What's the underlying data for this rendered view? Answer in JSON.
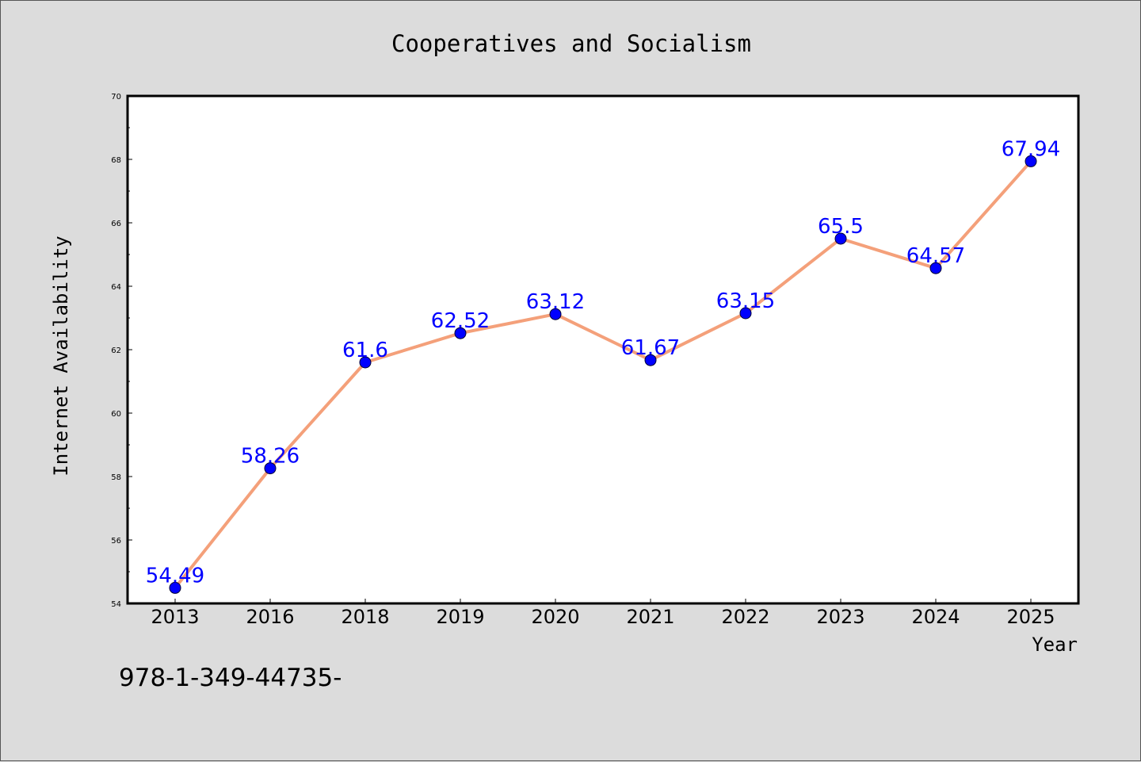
{
  "colors": {
    "background": "#dcdcdc",
    "plot_background": "#ffffff",
    "line": "#f4a07a",
    "marker": "#0000ff",
    "data_label": "#0000ff",
    "axis": "#000000"
  },
  "footer_text": "978-1-349-44735-",
  "chart_data": {
    "type": "line",
    "title": "Cooperatives and Socialism",
    "xlabel": "Year",
    "ylabel": "Internet Availability",
    "categories": [
      "2013",
      "2016",
      "2018",
      "2019",
      "2020",
      "2021",
      "2022",
      "2023",
      "2024",
      "2025"
    ],
    "series": [
      {
        "values": [
          54.49,
          58.26,
          61.6,
          62.52,
          63.12,
          61.67,
          63.15,
          65.5,
          64.57,
          67.94
        ],
        "labels": [
          "54.49",
          "58.26",
          "61.6",
          "62.52",
          "63.12",
          "61.67",
          "63.15",
          "65.5",
          "64.57",
          "67.94"
        ]
      }
    ],
    "ylim": [
      54,
      70
    ],
    "yticks": [
      54,
      56,
      58,
      60,
      62,
      64,
      66,
      68,
      70
    ],
    "yminor_step": 1,
    "grid": false,
    "legend": "none"
  }
}
